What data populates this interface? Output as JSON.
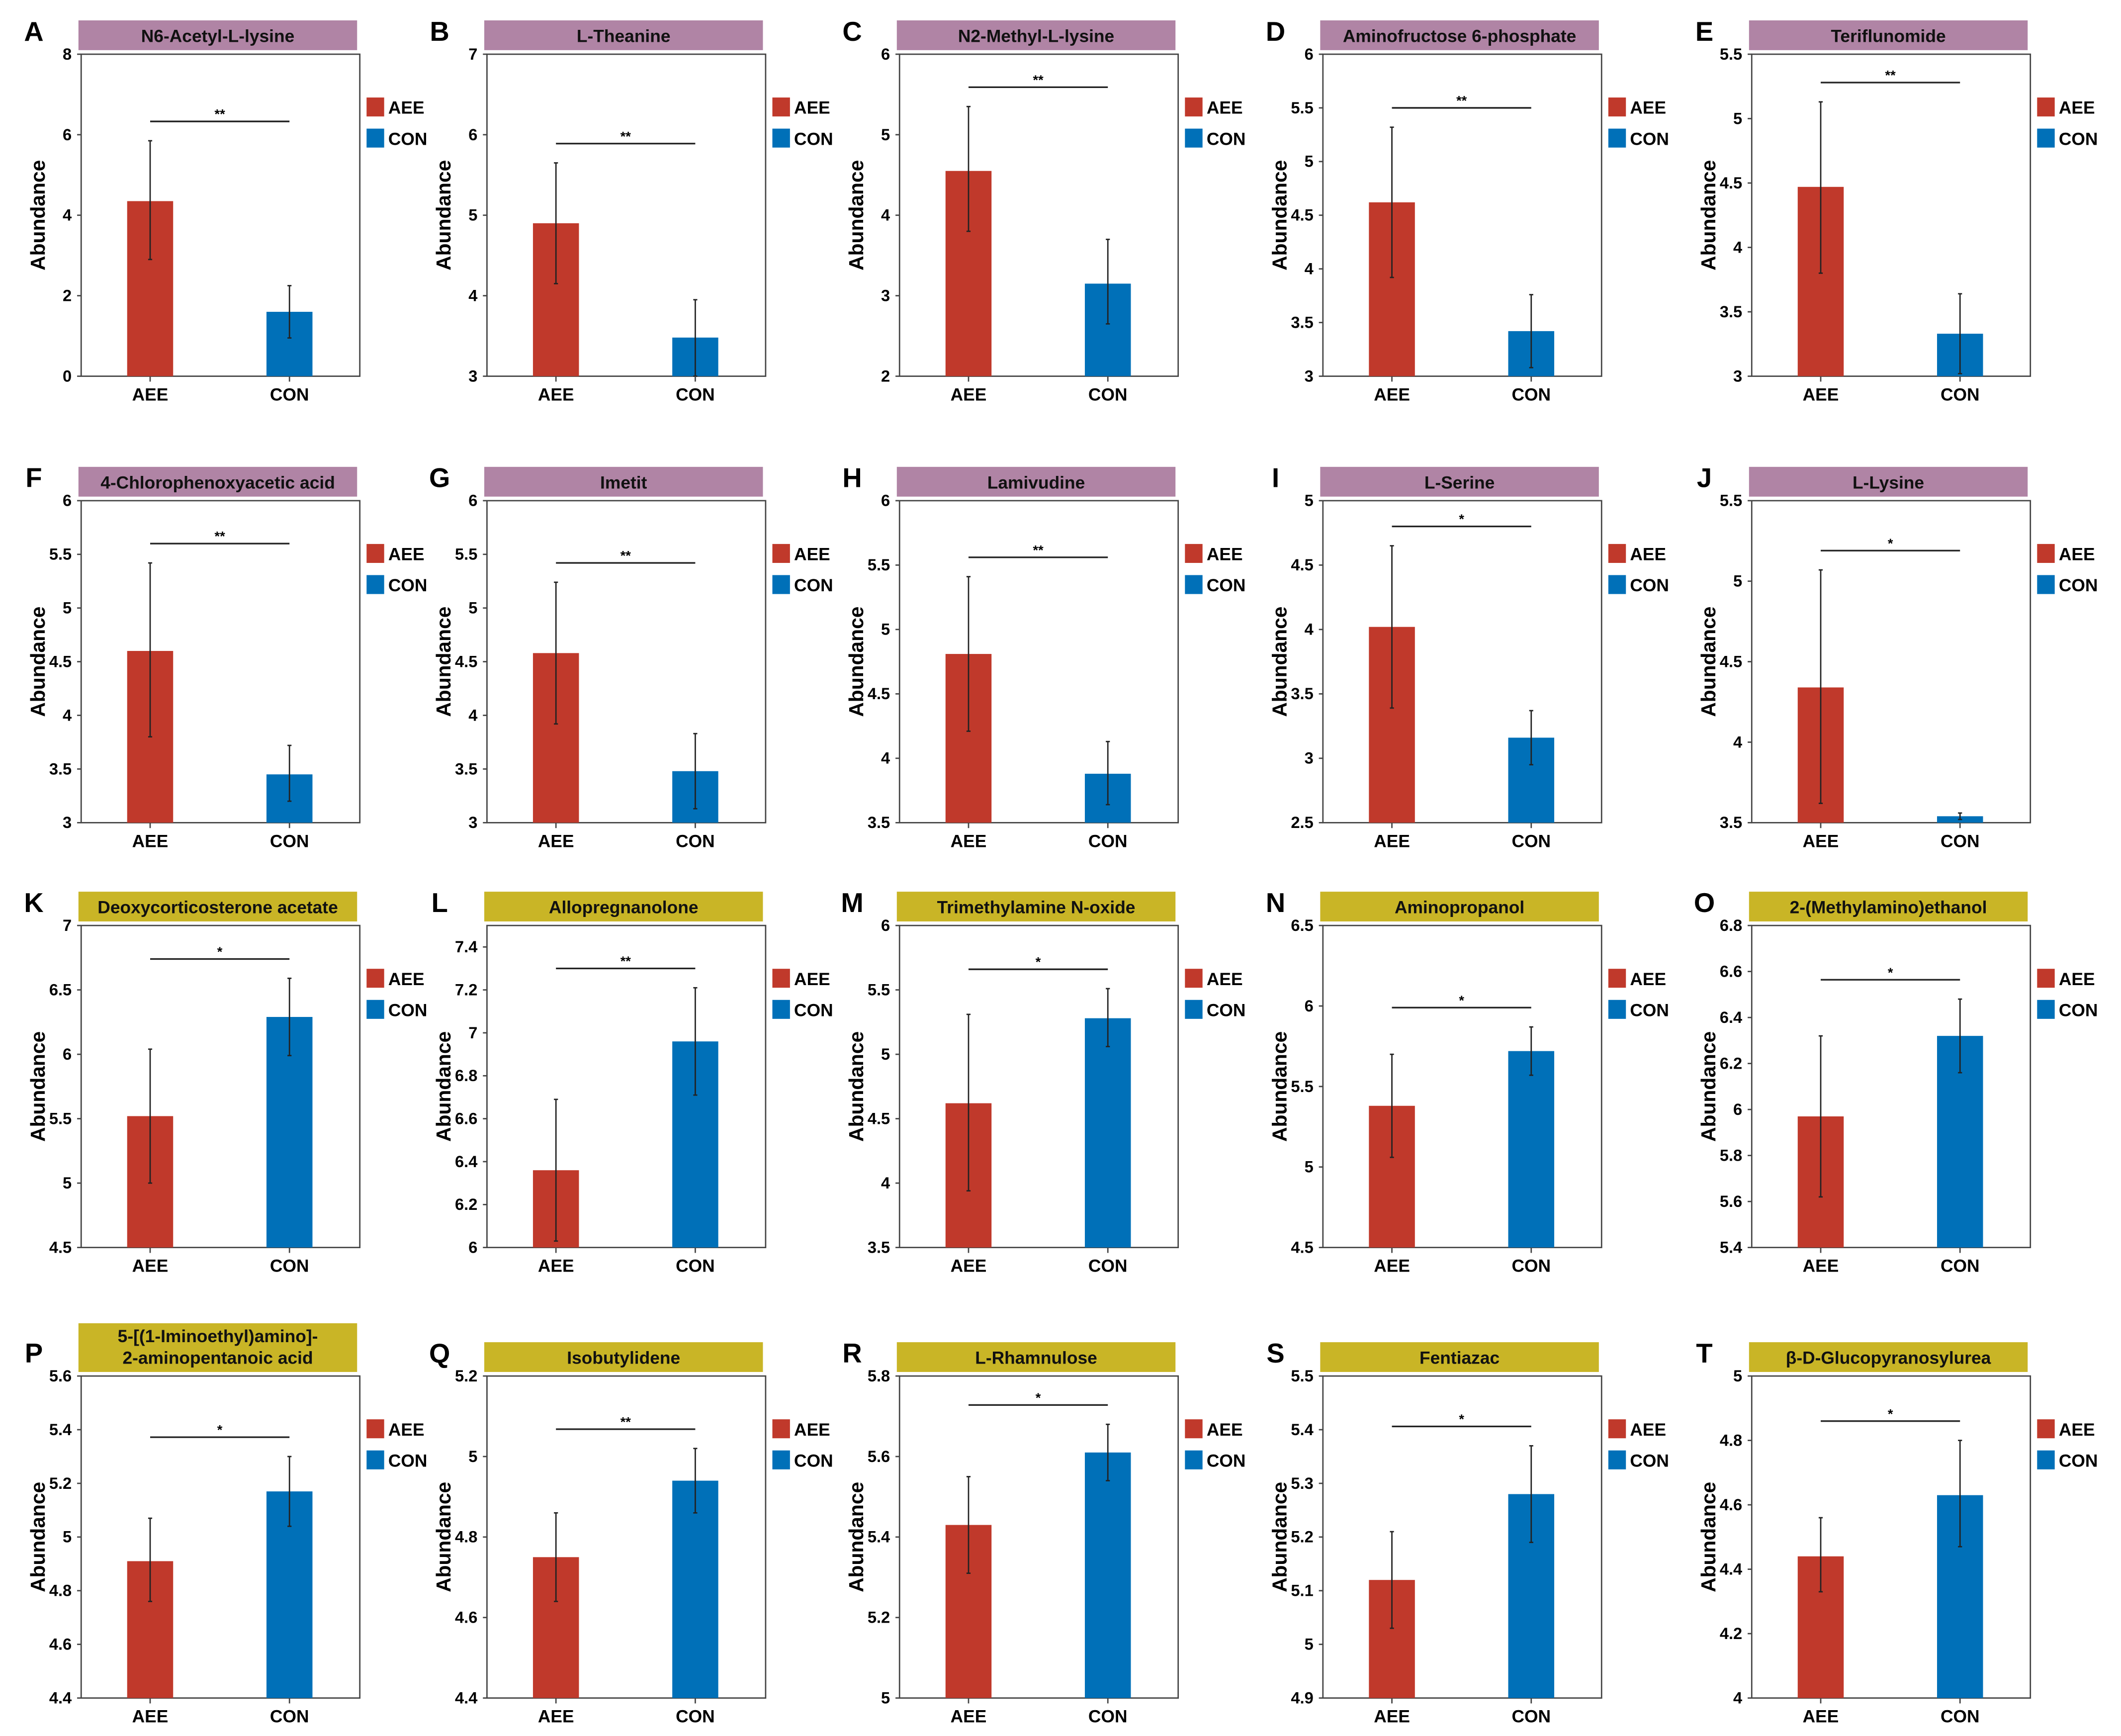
{
  "colors": {
    "AEE": "#c0392b",
    "CON": "#0070b8",
    "title_up": "#b084a5",
    "title_down": "#c9b526"
  },
  "legend": [
    "AEE",
    "CON"
  ],
  "ylabel": "Abundance",
  "chart_data": [
    {
      "type": "bar",
      "panel": "A",
      "title_lines": [
        "N6-Acetyl-L-lysine"
      ],
      "categories": [
        "AEE",
        "CON"
      ],
      "values": [
        4.35,
        1.6
      ],
      "error_low": [
        2.9,
        0.95
      ],
      "error_high": [
        5.85,
        2.25
      ],
      "ylim": [
        0,
        8
      ],
      "ticks": [
        0,
        2,
        4,
        6,
        8
      ],
      "sig": "**",
      "title_style": "up"
    },
    {
      "type": "bar",
      "panel": "B",
      "title_lines": [
        "L-Theanine"
      ],
      "categories": [
        "AEE",
        "CON"
      ],
      "values": [
        4.9,
        3.48
      ],
      "error_low": [
        4.15,
        3.0
      ],
      "error_high": [
        5.65,
        3.95
      ],
      "ylim": [
        3,
        7
      ],
      "ticks": [
        3,
        4,
        5,
        6,
        7
      ],
      "sig": "**",
      "title_style": "up"
    },
    {
      "type": "bar",
      "panel": "C",
      "title_lines": [
        "N2-Methyl-L-lysine"
      ],
      "categories": [
        "AEE",
        "CON"
      ],
      "values": [
        4.55,
        3.15
      ],
      "error_low": [
        3.8,
        2.65
      ],
      "error_high": [
        5.35,
        3.7
      ],
      "ylim": [
        2,
        6
      ],
      "ticks": [
        2,
        3,
        4,
        5,
        6
      ],
      "sig": "**",
      "title_style": "up"
    },
    {
      "type": "bar",
      "panel": "D",
      "title_lines": [
        "Aminofructose 6-phosphate"
      ],
      "categories": [
        "AEE",
        "CON"
      ],
      "values": [
        4.62,
        3.42
      ],
      "error_low": [
        3.92,
        3.08
      ],
      "error_high": [
        5.32,
        3.76
      ],
      "ylim": [
        3,
        6
      ],
      "ticks": [
        3,
        3.5,
        4,
        4.5,
        5,
        5.5,
        6
      ],
      "sig": "**",
      "title_style": "up"
    },
    {
      "type": "bar",
      "panel": "E",
      "title_lines": [
        "Teriflunomide"
      ],
      "categories": [
        "AEE",
        "CON"
      ],
      "values": [
        4.47,
        3.33
      ],
      "error_low": [
        3.8,
        3.02
      ],
      "error_high": [
        5.13,
        3.64
      ],
      "ylim": [
        3,
        5.5
      ],
      "ticks": [
        3,
        3.5,
        4,
        4.5,
        5,
        5.5
      ],
      "sig": "**",
      "title_style": "up"
    },
    {
      "type": "bar",
      "panel": "F",
      "title_lines": [
        "4-Chlorophenoxyacetic acid"
      ],
      "categories": [
        "AEE",
        "CON"
      ],
      "values": [
        4.6,
        3.45
      ],
      "error_low": [
        3.8,
        3.2
      ],
      "error_high": [
        5.42,
        3.72
      ],
      "ylim": [
        3,
        6
      ],
      "ticks": [
        3,
        3.5,
        4,
        4.5,
        5,
        5.5,
        6
      ],
      "sig": "**",
      "title_style": "up"
    },
    {
      "type": "bar",
      "panel": "G",
      "title_lines": [
        "Imetit"
      ],
      "categories": [
        "AEE",
        "CON"
      ],
      "values": [
        4.58,
        3.48
      ],
      "error_low": [
        3.92,
        3.13
      ],
      "error_high": [
        5.24,
        3.83
      ],
      "ylim": [
        3,
        6
      ],
      "ticks": [
        3,
        3.5,
        4,
        4.5,
        5,
        5.5,
        6
      ],
      "sig": "**",
      "title_style": "up"
    },
    {
      "type": "bar",
      "panel": "H",
      "title_lines": [
        "Lamivudine"
      ],
      "categories": [
        "AEE",
        "CON"
      ],
      "values": [
        4.81,
        3.88
      ],
      "error_low": [
        4.21,
        3.64
      ],
      "error_high": [
        5.41,
        4.13
      ],
      "ylim": [
        3.5,
        6
      ],
      "ticks": [
        3.5,
        4,
        4.5,
        5,
        5.5,
        6
      ],
      "sig": "**",
      "title_style": "up"
    },
    {
      "type": "bar",
      "panel": "I",
      "title_lines": [
        "L-Serine"
      ],
      "categories": [
        "AEE",
        "CON"
      ],
      "values": [
        4.02,
        3.16
      ],
      "error_low": [
        3.39,
        2.95
      ],
      "error_high": [
        4.65,
        3.37
      ],
      "ylim": [
        2.5,
        5
      ],
      "ticks": [
        2.5,
        3,
        3.5,
        4,
        4.5,
        5
      ],
      "sig": "*",
      "title_style": "up"
    },
    {
      "type": "bar",
      "panel": "J",
      "title_lines": [
        "L-Lysine"
      ],
      "categories": [
        "AEE",
        "CON"
      ],
      "values": [
        4.34,
        3.54
      ],
      "error_low": [
        3.62,
        3.52
      ],
      "error_high": [
        5.07,
        3.56
      ],
      "ylim": [
        3.5,
        5.5
      ],
      "ticks": [
        3.5,
        4,
        4.5,
        5,
        5.5
      ],
      "sig": "*",
      "title_style": "up"
    },
    {
      "type": "bar",
      "panel": "K",
      "title_lines": [
        "Deoxycorticosterone acetate"
      ],
      "categories": [
        "AEE",
        "CON"
      ],
      "values": [
        5.52,
        6.29
      ],
      "error_low": [
        5.0,
        5.99
      ],
      "error_high": [
        6.04,
        6.59
      ],
      "ylim": [
        4.5,
        7
      ],
      "ticks": [
        4.5,
        5,
        5.5,
        6,
        6.5,
        7
      ],
      "sig": "*",
      "title_style": "down"
    },
    {
      "type": "bar",
      "panel": "L",
      "title_lines": [
        "Allopregnanolone"
      ],
      "categories": [
        "AEE",
        "CON"
      ],
      "values": [
        6.36,
        6.96
      ],
      "error_low": [
        6.03,
        6.71
      ],
      "error_high": [
        6.69,
        7.21
      ],
      "ylim": [
        6,
        7.5
      ],
      "ticks": [
        6,
        6.2,
        6.4,
        6.6,
        6.8,
        7,
        7.2,
        7.4
      ],
      "sig": "**",
      "title_style": "down"
    },
    {
      "type": "bar",
      "panel": "M",
      "title_lines": [
        "Trimethylamine N-oxide"
      ],
      "categories": [
        "AEE",
        "CON"
      ],
      "values": [
        4.62,
        5.28
      ],
      "error_low": [
        3.94,
        5.06
      ],
      "error_high": [
        5.31,
        5.51
      ],
      "ylim": [
        3.5,
        6
      ],
      "ticks": [
        3.5,
        4,
        4.5,
        5,
        5.5,
        6
      ],
      "sig": "*",
      "title_style": "down"
    },
    {
      "type": "bar",
      "panel": "N",
      "title_lines": [
        "Aminopropanol"
      ],
      "categories": [
        "AEE",
        "CON"
      ],
      "values": [
        5.38,
        5.72
      ],
      "error_low": [
        5.06,
        5.57
      ],
      "error_high": [
        5.7,
        5.87
      ],
      "ylim": [
        4.5,
        6.5
      ],
      "ticks": [
        4.5,
        5,
        5.5,
        6,
        6.5
      ],
      "sig": "*",
      "title_style": "down"
    },
    {
      "type": "bar",
      "panel": "O",
      "title_lines": [
        "2-(Methylamino)ethanol"
      ],
      "categories": [
        "AEE",
        "CON"
      ],
      "values": [
        5.97,
        6.32
      ],
      "error_low": [
        5.62,
        6.16
      ],
      "error_high": [
        6.32,
        6.48
      ],
      "ylim": [
        5.4,
        6.8
      ],
      "ticks": [
        5.4,
        5.6,
        5.8,
        6,
        6.2,
        6.4,
        6.6,
        6.8
      ],
      "sig": "*",
      "title_style": "down"
    },
    {
      "type": "bar",
      "panel": "P",
      "title_lines": [
        "5-[(1-Iminoethyl)amino]-",
        "2-aminopentanoic acid"
      ],
      "categories": [
        "AEE",
        "CON"
      ],
      "values": [
        4.91,
        5.17
      ],
      "error_low": [
        4.76,
        5.04
      ],
      "error_high": [
        5.07,
        5.3
      ],
      "ylim": [
        4.4,
        5.6
      ],
      "ticks": [
        4.4,
        4.6,
        4.8,
        5,
        5.2,
        5.4,
        5.6
      ],
      "sig": "*",
      "title_style": "down"
    },
    {
      "type": "bar",
      "panel": "Q",
      "title_lines": [
        "Isobutylidene"
      ],
      "categories": [
        "AEE",
        "CON"
      ],
      "values": [
        4.75,
        4.94
      ],
      "error_low": [
        4.64,
        4.86
      ],
      "error_high": [
        4.86,
        5.02
      ],
      "ylim": [
        4.4,
        5.2
      ],
      "ticks": [
        4.4,
        4.6,
        4.8,
        5,
        5.2
      ],
      "sig": "**",
      "title_style": "down"
    },
    {
      "type": "bar",
      "panel": "R",
      "title_lines": [
        "L-Rhamnulose"
      ],
      "categories": [
        "AEE",
        "CON"
      ],
      "values": [
        5.43,
        5.61
      ],
      "error_low": [
        5.31,
        5.54
      ],
      "error_high": [
        5.55,
        5.68
      ],
      "ylim": [
        5,
        5.8
      ],
      "ticks": [
        5,
        5.2,
        5.4,
        5.6,
        5.8
      ],
      "sig": "*",
      "title_style": "down"
    },
    {
      "type": "bar",
      "panel": "S",
      "title_lines": [
        "Fentiazac"
      ],
      "categories": [
        "AEE",
        "CON"
      ],
      "values": [
        5.12,
        5.28
      ],
      "error_low": [
        5.03,
        5.19
      ],
      "error_high": [
        5.21,
        5.37
      ],
      "ylim": [
        4.9,
        5.5
      ],
      "ticks": [
        4.9,
        5,
        5.1,
        5.2,
        5.3,
        5.4,
        5.5
      ],
      "sig": "*",
      "title_style": "down"
    },
    {
      "type": "bar",
      "panel": "T",
      "title_lines": [
        "β-D-Glucopyranosylurea"
      ],
      "categories": [
        "AEE",
        "CON"
      ],
      "values": [
        4.44,
        4.63
      ],
      "error_low": [
        4.33,
        4.47
      ],
      "error_high": [
        4.56,
        4.8
      ],
      "ylim": [
        4,
        5
      ],
      "ticks": [
        4,
        4.2,
        4.4,
        4.6,
        4.8,
        5
      ],
      "sig": "*",
      "title_style": "down"
    }
  ]
}
